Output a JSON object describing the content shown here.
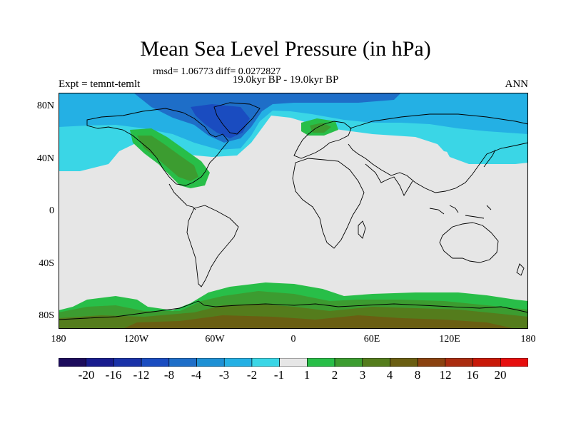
{
  "header": {
    "title": "Mean Sea Level Pressure (in hPa)",
    "stats": "rmsd= 1.06773 diff= 0.0272827",
    "experiment": "Expt = temnt-temlt",
    "period": "19.0kyr BP - 19.0kyr BP",
    "season": "ANN"
  },
  "axes": {
    "lat_labels": [
      "80N",
      "40N",
      "0",
      "40S",
      "80S"
    ],
    "lon_labels": [
      "180",
      "120W",
      "60W",
      "0",
      "60E",
      "120E",
      "180"
    ]
  },
  "colorbar": {
    "labels": [
      "-20",
      "-16",
      "-12",
      "-8",
      "-4",
      "-3",
      "-2",
      "-1",
      "1",
      "2",
      "3",
      "4",
      "8",
      "12",
      "16",
      "20"
    ],
    "colors": [
      "#1c0c5c",
      "#181c8e",
      "#1a32a8",
      "#1a4cc0",
      "#1e6ec8",
      "#1e90d4",
      "#24b0e4",
      "#3ad6e6",
      "#e6e6e6",
      "#28be48",
      "#3c9c30",
      "#547c1c",
      "#6a5e12",
      "#8a4210",
      "#aa2c10",
      "#c81808",
      "#e60e0e"
    ]
  },
  "map_colors": {
    "background": "#e6e6e6",
    "coast": "#000000",
    "neg_light": "#3ad6e6",
    "neg_mid": "#24b0e4",
    "neg_dark": "#1e6ec8",
    "neg_deep": "#1a4cc0",
    "pos_light": "#28be48",
    "pos_mid": "#3c9c30",
    "pos_dark": "#547c1c",
    "pos_deep": "#6a5e12"
  }
}
